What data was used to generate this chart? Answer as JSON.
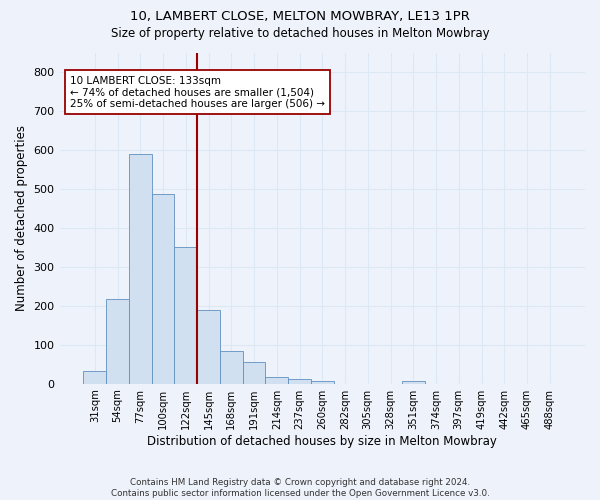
{
  "title": "10, LAMBERT CLOSE, MELTON MOWBRAY, LE13 1PR",
  "subtitle": "Size of property relative to detached houses in Melton Mowbray",
  "xlabel": "Distribution of detached houses by size in Melton Mowbray",
  "ylabel": "Number of detached properties",
  "bar_values": [
    33,
    218,
    590,
    488,
    350,
    188,
    84,
    55,
    18,
    13,
    7,
    0,
    0,
    0,
    7,
    0,
    0,
    0,
    0,
    0,
    0
  ],
  "categories": [
    "31sqm",
    "54sqm",
    "77sqm",
    "100sqm",
    "122sqm",
    "145sqm",
    "168sqm",
    "191sqm",
    "214sqm",
    "237sqm",
    "260sqm",
    "282sqm",
    "305sqm",
    "328sqm",
    "351sqm",
    "374sqm",
    "397sqm",
    "419sqm",
    "442sqm",
    "465sqm",
    "488sqm"
  ],
  "bar_color": "#d0e0f0",
  "bar_edge_color": "#6090c0",
  "grid_color": "#dde8f5",
  "vline_color": "#990000",
  "annotation_text": "10 LAMBERT CLOSE: 133sqm\n← 74% of detached houses are smaller (1,504)\n25% of semi-detached houses are larger (506) →",
  "annotation_box_color": "white",
  "annotation_box_edge": "#990000",
  "ylim": [
    0,
    850
  ],
  "yticks": [
    0,
    100,
    200,
    300,
    400,
    500,
    600,
    700,
    800
  ],
  "footer_text": "Contains HM Land Registry data © Crown copyright and database right 2024.\nContains public sector information licensed under the Open Government Licence v3.0.",
  "background_color": "#eef2fa"
}
